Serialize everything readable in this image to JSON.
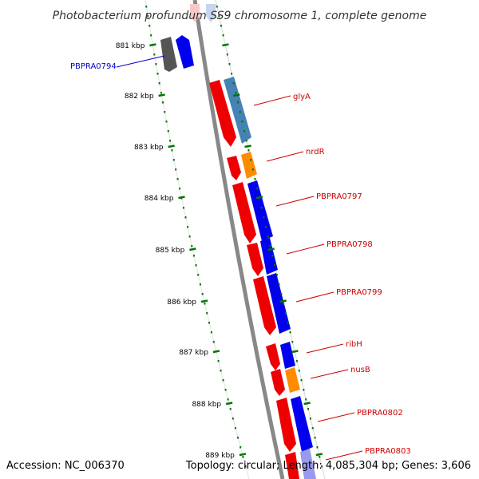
{
  "title": "Photobacterium profundum SS9 chromosome 1, complete genome",
  "footer": {
    "accession": "Accession: NC_006370",
    "summary": "Topology: circular; Length: 4,085,304 bp; Genes: 3,606"
  },
  "ticks": [
    "881 kbp",
    "882 kbp",
    "883 kbp",
    "884 kbp",
    "885 kbp",
    "886 kbp",
    "887 kbp",
    "888 kbp",
    "889 kbp"
  ],
  "gene_labels": [
    {
      "text": "PBPRA0794",
      "color": "#0000cc"
    },
    {
      "text": "glyA",
      "color": "#cc0000"
    },
    {
      "text": "nrdR",
      "color": "#cc0000"
    },
    {
      "text": "PBPRA0797",
      "color": "#cc0000"
    },
    {
      "text": "PBPRA0798",
      "color": "#cc0000"
    },
    {
      "text": "PBPRA0799",
      "color": "#cc0000"
    },
    {
      "text": "ribH",
      "color": "#cc0000"
    },
    {
      "text": "nusB",
      "color": "#cc0000"
    },
    {
      "text": "PBPRA0802",
      "color": "#cc0000"
    },
    {
      "text": "PBPRA0803",
      "color": "#cc0000"
    }
  ],
  "colors": {
    "backbone": "#888888",
    "tick": "#007700",
    "cds_red": "#ee0000",
    "cds_blue": "#0000ee",
    "cds_grey": "#555555",
    "cds_steelblue": "#4682b4",
    "cds_orange": "#ff8c00"
  }
}
